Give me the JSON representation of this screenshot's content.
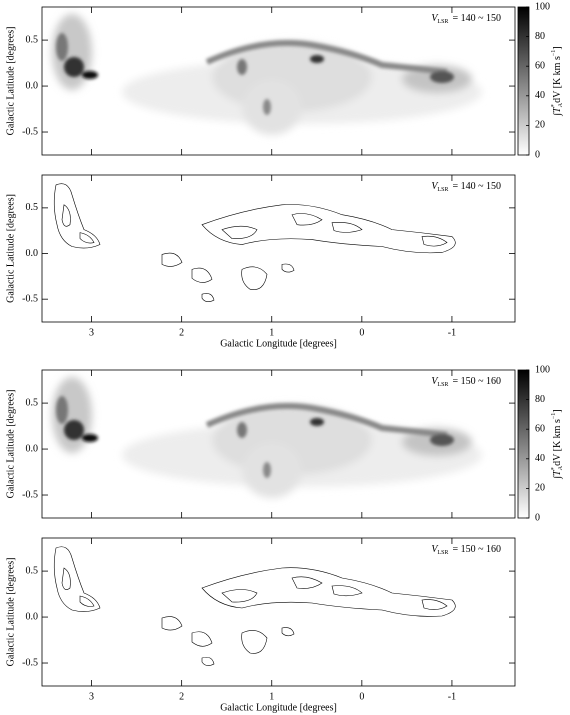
{
  "chart_data": [
    {
      "type": "heatmap",
      "ylabel": "Galactic Latitude [degrees]",
      "annotation": {
        "symbol": "V",
        "subscript": "LSR",
        "text": "= 140 ~ 150"
      },
      "xlim": [
        3.55,
        -1.7
      ],
      "xticks": [
        3,
        2,
        1,
        0,
        -1
      ],
      "ylim": [
        -0.75,
        0.86
      ],
      "yticks": [
        0.5,
        {
          "value": 0,
          "label": "0.0"
        },
        -0.5
      ],
      "colorbar": {
        "lim": [
          0,
          100
        ],
        "ticks": [
          0,
          20,
          40,
          60,
          80,
          100
        ],
        "label": {
          "main": "∫T",
          "sup": "*",
          "sub": "A",
          "rest": "dV  [K km s",
          "exp": "−1",
          "end": "]"
        }
      }
    },
    {
      "type": "contour",
      "ylabel": "Galactic Latitude [degrees]",
      "xlabel": "Galactic Longitude [degrees]",
      "annotation": {
        "symbol": "V",
        "subscript": "LSR",
        "text": "= 140 ~ 150"
      },
      "xlim": [
        3.55,
        -1.7
      ],
      "xticks": [
        3,
        2,
        1,
        0,
        -1
      ],
      "ylim": [
        -0.75,
        0.86
      ],
      "yticks": [
        0.5,
        {
          "value": 0,
          "label": "0.0"
        },
        -0.5
      ]
    },
    {
      "type": "heatmap",
      "ylabel": "Galactic Latitude [degrees]",
      "annotation": {
        "symbol": "V",
        "subscript": "LSR",
        "text": "= 150 ~ 160"
      },
      "xlim": [
        3.55,
        -1.7
      ],
      "xticks": [
        3,
        2,
        1,
        0,
        -1
      ],
      "ylim": [
        -0.75,
        0.86
      ],
      "yticks": [
        0.5,
        {
          "value": 0,
          "label": "0.0"
        },
        -0.5
      ],
      "colorbar": {
        "lim": [
          0,
          100
        ],
        "ticks": [
          0,
          20,
          40,
          60,
          80,
          100
        ],
        "label": {
          "main": "∫T",
          "sup": "*",
          "sub": "A",
          "rest": "dV  [K km s",
          "exp": "−1",
          "end": "]"
        }
      }
    },
    {
      "type": "contour",
      "ylabel": "Galactic Latitude [degrees]",
      "xlabel": "Galactic Longitude [degrees]",
      "annotation": {
        "symbol": "V",
        "subscript": "LSR",
        "text": "= 150 ~ 160"
      },
      "xlim": [
        3.55,
        -1.7
      ],
      "xticks": [
        3,
        2,
        1,
        0,
        -1
      ],
      "ylim": [
        -0.75,
        0.86
      ],
      "yticks": [
        0.5,
        {
          "value": 0,
          "label": "0.0"
        },
        -0.5
      ]
    }
  ]
}
